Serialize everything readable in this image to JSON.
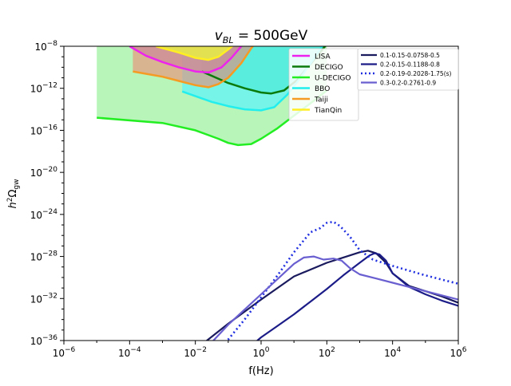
{
  "chart_data": {
    "type": "line",
    "title_parts": {
      "base": "v",
      "sub": "BL",
      "rest": " = 500GeV"
    },
    "xlabel": "f(Hz)",
    "ylabel_parts": {
      "h": "h",
      "sup": "2",
      "omega": "Ω",
      "sub": "gw"
    },
    "x_scale": "log",
    "y_scale": "log",
    "xlim_exp": [
      -6,
      6
    ],
    "ylim_exp": [
      -36,
      -8
    ],
    "x_ticks": [
      {
        "exp": -6,
        "label": "−6"
      },
      {
        "exp": -4,
        "label": "−4"
      },
      {
        "exp": -2,
        "label": "−2"
      },
      {
        "exp": 0,
        "label": "0"
      },
      {
        "exp": 2,
        "label": "2"
      },
      {
        "exp": 4,
        "label": "4"
      },
      {
        "exp": 6,
        "label": "6"
      }
    ],
    "y_ticks": [
      {
        "exp": -36,
        "label": "−36"
      },
      {
        "exp": -32,
        "label": "−32"
      },
      {
        "exp": -28,
        "label": "−28"
      },
      {
        "exp": -24,
        "label": "−24"
      },
      {
        "exp": -20,
        "label": "−20"
      },
      {
        "exp": -16,
        "label": "−16"
      },
      {
        "exp": -12,
        "label": "−12"
      },
      {
        "exp": -8,
        "label": "−8"
      }
    ],
    "detectors": [
      {
        "name": "U-DECIGO",
        "color": "#22ee22",
        "fill": "#b8f5b8",
        "fill_opacity": 1.0,
        "curve": [
          [
            -5,
            -14.8
          ],
          [
            -3,
            -15.3
          ],
          [
            -2,
            -16.0
          ],
          [
            -1.3,
            -16.8
          ],
          [
            -1,
            -17.2
          ],
          [
            -0.7,
            -17.4
          ],
          [
            -0.3,
            -17.3
          ],
          [
            0,
            -16.8
          ],
          [
            0.5,
            -15.8
          ],
          [
            1,
            -14.6
          ],
          [
            1.6,
            -13.2
          ],
          [
            2,
            -12.2
          ]
        ]
      },
      {
        "name": "DECIGO",
        "color": "#0a7a0a",
        "fill": "#11cc77",
        "fill_opacity": 0.9,
        "curve": [
          [
            -1.8,
            -10.4
          ],
          [
            -1,
            -11.5
          ],
          [
            -0.5,
            -12.0
          ],
          [
            0,
            -12.4
          ],
          [
            0.3,
            -12.5
          ],
          [
            0.7,
            -12.2
          ],
          [
            1.1,
            -11.2
          ],
          [
            1.5,
            -9.7
          ],
          [
            2,
            -7.8
          ]
        ]
      },
      {
        "name": "BBO",
        "color": "#22eeee",
        "fill": "#66f4f4",
        "fill_opacity": 0.8,
        "curve": [
          [
            -2.4,
            -12.3
          ],
          [
            -1.5,
            -13.3
          ],
          [
            -1,
            -13.7
          ],
          [
            -0.5,
            -14.0
          ],
          [
            0,
            -14.1
          ],
          [
            0.4,
            -13.8
          ],
          [
            0.8,
            -12.6
          ],
          [
            1.2,
            -11.0
          ],
          [
            1.6,
            -9.2
          ],
          [
            1.9,
            -7.8
          ]
        ]
      },
      {
        "name": "Taiji",
        "color": "#f59a22",
        "fill": "#ee8877",
        "fill_opacity": 0.6,
        "curve": [
          [
            -3.9,
            -10.4
          ],
          [
            -3,
            -10.9
          ],
          [
            -2.5,
            -11.3
          ],
          [
            -2,
            -11.7
          ],
          [
            -1.6,
            -11.9
          ],
          [
            -1.3,
            -11.6
          ],
          [
            -1,
            -11.0
          ],
          [
            -0.6,
            -9.6
          ],
          [
            -0.3,
            -8.2
          ],
          [
            -0.2,
            -7.8
          ]
        ]
      },
      {
        "name": "LISA",
        "color": "#ee22ee",
        "fill": "#cc8899",
        "fill_opacity": 0.7,
        "curve": [
          [
            -4,
            -8.0
          ],
          [
            -3.5,
            -8.9
          ],
          [
            -3,
            -9.5
          ],
          [
            -2.5,
            -10.0
          ],
          [
            -2,
            -10.4
          ],
          [
            -1.6,
            -10.5
          ],
          [
            -1.2,
            -10.0
          ],
          [
            -0.9,
            -9.1
          ],
          [
            -0.6,
            -8.0
          ],
          [
            -0.5,
            -7.8
          ]
        ]
      },
      {
        "name": "TianQin",
        "color": "#ffee22",
        "fill": "#e8ee44",
        "fill_opacity": 0.85,
        "curve": [
          [
            -3.2,
            -8.0
          ],
          [
            -2.5,
            -8.6
          ],
          [
            -2,
            -9.1
          ],
          [
            -1.6,
            -9.3
          ],
          [
            -1.3,
            -9.0
          ],
          [
            -1,
            -8.3
          ],
          [
            -0.8,
            -7.8
          ]
        ]
      }
    ],
    "series": [
      {
        "name": "0.1-0.15-0.0758-0.5",
        "color": "#1a1a5e",
        "dash": "",
        "curve": [
          [
            -1.85,
            -36.5
          ],
          [
            -1,
            -34.4
          ],
          [
            0,
            -32.1
          ],
          [
            1,
            -29.9
          ],
          [
            2,
            -28.6
          ],
          [
            2.5,
            -28.1
          ],
          [
            3,
            -27.6
          ],
          [
            3.25,
            -27.45
          ],
          [
            3.5,
            -27.7
          ],
          [
            3.8,
            -28.6
          ],
          [
            4,
            -29.6
          ],
          [
            4.5,
            -30.8
          ],
          [
            5,
            -31.3
          ],
          [
            5.5,
            -31.8
          ],
          [
            6,
            -32.4
          ]
        ]
      },
      {
        "name": "0.2-0.15-0.1188-0.8",
        "color": "#1c1c88",
        "dash": "",
        "curve": [
          [
            -0.3,
            -36.5
          ],
          [
            0,
            -35.7
          ],
          [
            0.5,
            -34.6
          ],
          [
            1,
            -33.5
          ],
          [
            1.5,
            -32.3
          ],
          [
            2,
            -31.1
          ],
          [
            2.5,
            -29.8
          ],
          [
            3,
            -28.6
          ],
          [
            3.3,
            -27.9
          ],
          [
            3.45,
            -27.7
          ],
          [
            3.6,
            -27.8
          ],
          [
            3.8,
            -28.4
          ],
          [
            4,
            -29.6
          ],
          [
            4.5,
            -30.9
          ],
          [
            5,
            -31.6
          ],
          [
            5.5,
            -32.2
          ],
          [
            6,
            -32.7
          ]
        ]
      },
      {
        "name": "0.2-0.19-0.2028-1.75(s)",
        "color": "#1f2fe0",
        "dash": "2,3.5",
        "curve": [
          [
            -1.2,
            -36.5
          ],
          [
            -1,
            -35.9
          ],
          [
            -0.5,
            -34.0
          ],
          [
            0,
            -31.9
          ],
          [
            0.5,
            -29.8
          ],
          [
            1,
            -27.6
          ],
          [
            1.5,
            -25.7
          ],
          [
            1.8,
            -25.3
          ],
          [
            2,
            -24.8
          ],
          [
            2.2,
            -24.7
          ],
          [
            2.4,
            -25.1
          ],
          [
            2.7,
            -26.1
          ],
          [
            3,
            -27.4
          ],
          [
            3.4,
            -28.3
          ],
          [
            4,
            -28.9
          ],
          [
            5,
            -29.8
          ],
          [
            6,
            -30.6
          ]
        ]
      },
      {
        "name": "0.3-0.2-0.2761-0.9",
        "color": "#6a5fd0",
        "dash": "",
        "curve": [
          [
            -1.6,
            -36.5
          ],
          [
            -1,
            -34.5
          ],
          [
            0,
            -31.6
          ],
          [
            1,
            -28.7
          ],
          [
            1.3,
            -28.1
          ],
          [
            1.6,
            -28.0
          ],
          [
            1.9,
            -28.3
          ],
          [
            2.2,
            -28.2
          ],
          [
            2.45,
            -28.4
          ],
          [
            2.7,
            -29.1
          ],
          [
            3,
            -29.7
          ],
          [
            3.5,
            -30.1
          ],
          [
            4,
            -30.5
          ],
          [
            5,
            -31.3
          ],
          [
            6,
            -32.1
          ]
        ]
      }
    ]
  }
}
